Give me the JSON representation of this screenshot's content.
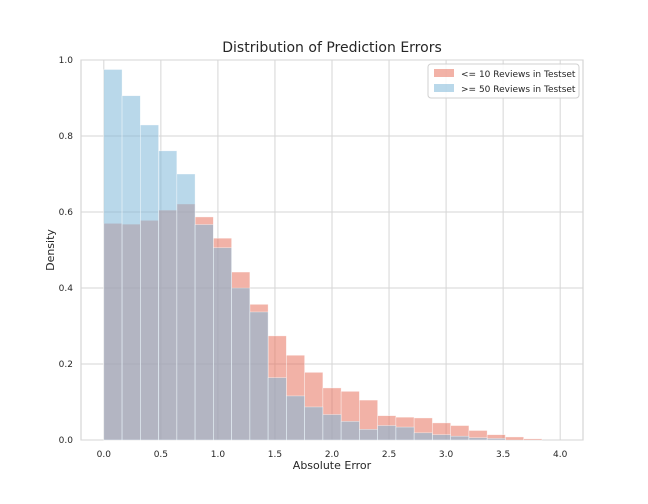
{
  "chart_data": {
    "type": "bar",
    "title": "Distribution of Prediction Errors",
    "xlabel": "Absolute Error",
    "ylabel": "Density",
    "xlim": [
      -0.2,
      4.2
    ],
    "ylim": [
      0,
      1.0
    ],
    "xticks": [
      "0.0",
      "0.5",
      "1.0",
      "1.5",
      "2.0",
      "2.5",
      "3.0",
      "3.5",
      "4.0"
    ],
    "yticks": [
      "0.0",
      "0.2",
      "0.4",
      "0.6",
      "0.8",
      "1.0"
    ],
    "grid": true,
    "legend_position": "top-right",
    "bin_width": 0.16,
    "series": [
      {
        "name": "<= 10 Reviews in Testset",
        "color": "#e8735f",
        "bin_starts": [
          0.0,
          0.16,
          0.32,
          0.48,
          0.64,
          0.8,
          0.96,
          1.12,
          1.28,
          1.44,
          1.6,
          1.76,
          1.92,
          2.08,
          2.24,
          2.4,
          2.56,
          2.72,
          2.88,
          3.04,
          3.2,
          3.36,
          3.52,
          3.68
        ],
        "values": [
          0.57,
          0.568,
          0.578,
          0.605,
          0.621,
          0.587,
          0.531,
          0.442,
          0.357,
          0.274,
          0.223,
          0.178,
          0.137,
          0.128,
          0.105,
          0.064,
          0.06,
          0.058,
          0.045,
          0.038,
          0.025,
          0.014,
          0.008,
          0.003
        ]
      },
      {
        "name": ">= 50 Reviews in Testset",
        "color": "#7fb8d8",
        "bin_starts": [
          0.0,
          0.16,
          0.32,
          0.48,
          0.64,
          0.8,
          0.96,
          1.12,
          1.28,
          1.44,
          1.6,
          1.76,
          1.92,
          2.08,
          2.24,
          2.4,
          2.56,
          2.72,
          2.88,
          3.04,
          3.2,
          3.36
        ],
        "values": [
          0.975,
          0.906,
          0.829,
          0.761,
          0.7,
          0.567,
          0.506,
          0.4,
          0.337,
          0.164,
          0.116,
          0.087,
          0.067,
          0.049,
          0.028,
          0.038,
          0.034,
          0.019,
          0.014,
          0.01,
          0.006,
          0.004
        ]
      }
    ]
  }
}
